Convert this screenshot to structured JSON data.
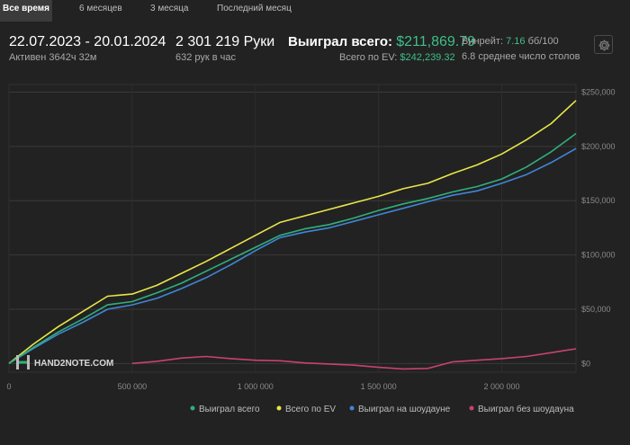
{
  "tabs": [
    {
      "label": "Все время",
      "active": true
    },
    {
      "label": "6 месяцев",
      "active": false
    },
    {
      "label": "3 месяца",
      "active": false
    },
    {
      "label": "Последний месяц",
      "active": false
    }
  ],
  "summary": {
    "date_range": "22.07.2023 - 20.01.2024",
    "active_time": "Активен 3642ч 32м",
    "hands": "2 301 219 Руки",
    "hands_rate": "632 рук в час",
    "won_label": "Выиграл всего:",
    "won_value": "$211,869.79",
    "ev_label": "Всего по EV:",
    "ev_value": "$242,239.32",
    "winrate_label": "Винрейт:",
    "winrate_value": "7.16",
    "winrate_unit": "бб/100",
    "tables": "6.8 среднее число столов"
  },
  "settings_icon": "gear-icon",
  "watermark": "HAND2NOTE.COM",
  "colors": {
    "background": "#222222",
    "won": "#2fb07c",
    "ev": "#e8e64a",
    "showdown": "#3f86d6",
    "non_showdown": "#c9426e",
    "accent_green": "#3fbf8a"
  },
  "chart_data": {
    "type": "line",
    "x_ticks": [
      0,
      500000,
      1000000,
      1500000,
      2000000
    ],
    "x_tick_labels": [
      "0",
      "500 000",
      "1 000 000",
      "1 500 000",
      "2 000 000"
    ],
    "y_ticks": [
      0,
      50000,
      100000,
      150000,
      200000,
      250000
    ],
    "y_tick_labels": [
      "$0",
      "$50,000",
      "$100,000",
      "$150,000",
      "$200,000",
      "$250,000"
    ],
    "xlim": [
      0,
      2301219
    ],
    "ylim": [
      -8000,
      257000
    ],
    "grid": true,
    "legend_position": "bottom",
    "x": [
      0,
      100000,
      200000,
      300000,
      400000,
      500000,
      600000,
      700000,
      800000,
      900000,
      1000000,
      1100000,
      1200000,
      1300000,
      1400000,
      1500000,
      1600000,
      1700000,
      1800000,
      1900000,
      2000000,
      2100000,
      2200000,
      2301219
    ],
    "series": [
      {
        "name": "Выиграл всего",
        "color": "#2fb07c",
        "values": [
          0,
          15000,
          29000,
          41000,
          54000,
          57000,
          65000,
          74000,
          85000,
          96000,
          107000,
          118000,
          124000,
          128000,
          134000,
          141000,
          147000,
          152000,
          158000,
          163000,
          170000,
          181000,
          195000,
          211870
        ]
      },
      {
        "name": "Всего по EV",
        "color": "#e8e64a",
        "values": [
          0,
          18000,
          34000,
          48000,
          62000,
          64000,
          72000,
          83000,
          94000,
          106000,
          118000,
          130000,
          136000,
          142000,
          148000,
          154000,
          161000,
          166000,
          175000,
          183000,
          193000,
          206000,
          221000,
          242239
        ]
      },
      {
        "name": "Выиграл на шоудауне",
        "color": "#3f86d6",
        "values": [
          0,
          14000,
          27000,
          38000,
          50000,
          54000,
          60000,
          69000,
          79000,
          91000,
          104000,
          116000,
          121000,
          125000,
          131000,
          137000,
          143000,
          149000,
          155000,
          159000,
          166000,
          174000,
          185000,
          198000
        ]
      },
      {
        "name": "Выиграл без шоудауна",
        "color": "#c9426e",
        "values": [
          null,
          null,
          null,
          null,
          null,
          0,
          2000,
          5000,
          6500,
          4500,
          3000,
          2500,
          500,
          -500,
          -1500,
          -3500,
          -5000,
          -4500,
          1500,
          3000,
          4500,
          6500,
          10000,
          13500
        ]
      }
    ]
  }
}
